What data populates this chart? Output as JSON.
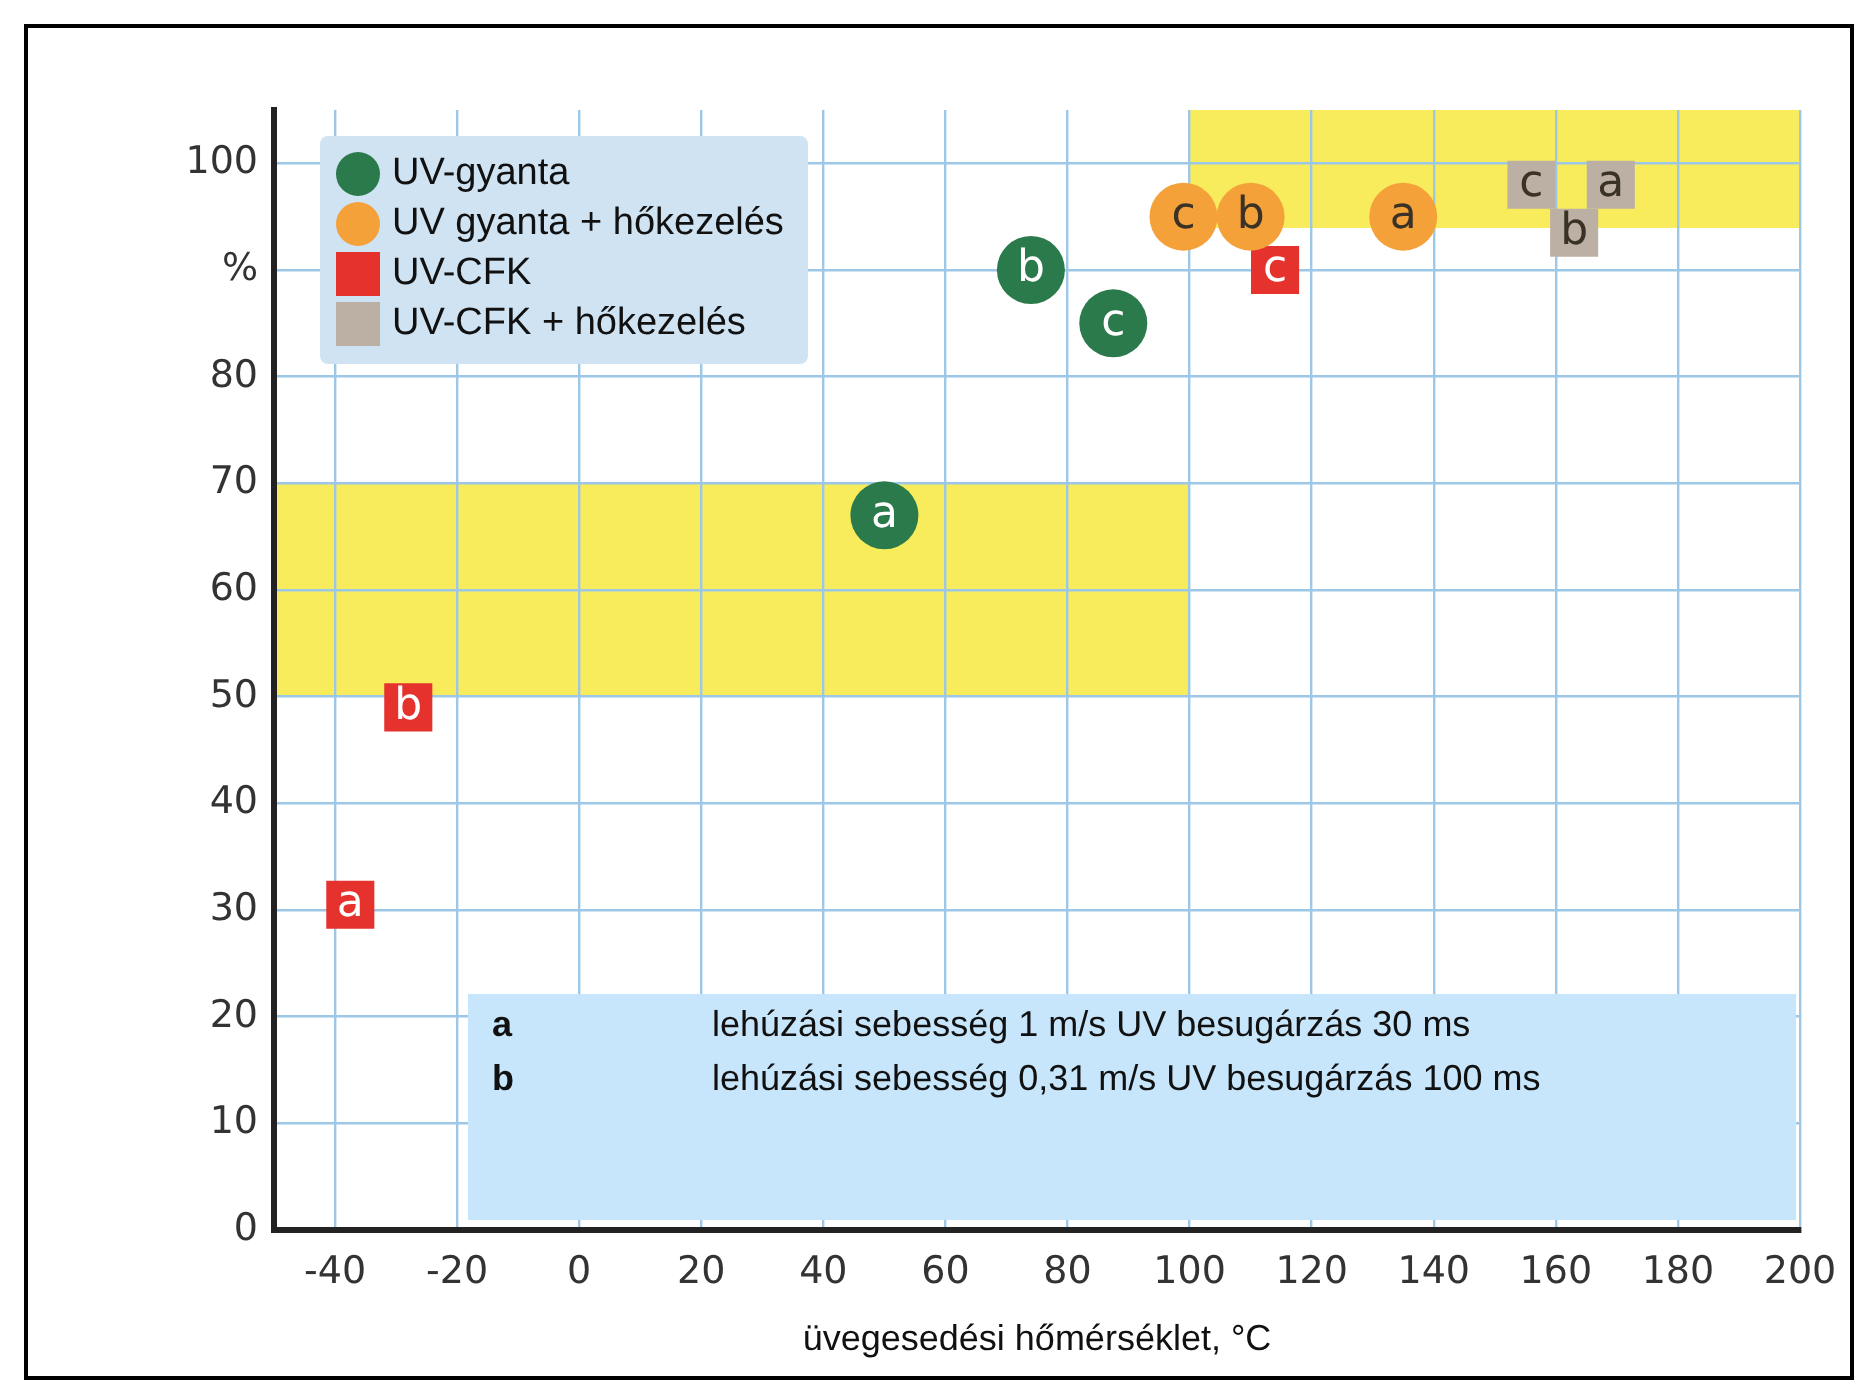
{
  "chart_data": {
    "type": "scatter",
    "xlabel": "üvegesedési hőmérséklet, °C",
    "xlim": [
      -50,
      200
    ],
    "xticks": [
      -40,
      -20,
      0,
      20,
      40,
      60,
      80,
      100,
      120,
      140,
      160,
      180,
      200
    ],
    "ylim": [
      0,
      105
    ],
    "yticks": [
      0,
      10,
      20,
      30,
      40,
      50,
      60,
      70,
      80,
      {
        "value": 90,
        "label": "%"
      },
      100
    ],
    "grid": true,
    "legend": "top left",
    "series": [
      {
        "name": "UV-gyanta",
        "color": "#2a7a4c",
        "marker": "circle",
        "x": [
          50,
          74,
          87.5
        ],
        "values": [
          67,
          90,
          85
        ],
        "value_labels": [
          "a",
          "b",
          "c"
        ]
      },
      {
        "name": "UV gyanta + hőkezelés",
        "color": "#f4a13a",
        "marker": "circle",
        "x": [
          135,
          110,
          99
        ],
        "values": [
          95,
          95,
          95
        ],
        "value_labels": [
          "a",
          "b",
          "c"
        ]
      },
      {
        "name": "UV-CFK",
        "color": "#e5322d",
        "marker": "square",
        "x": [
          -37.5,
          -28,
          114
        ],
        "values": [
          30.5,
          49,
          90
        ],
        "value_labels": [
          "a",
          "b",
          "c"
        ]
      },
      {
        "name": "UV-CFK + hőkezelés",
        "color": "#bbb0a3",
        "marker": "square",
        "x": [
          169,
          163,
          156
        ],
        "values": [
          98,
          93.5,
          98
        ],
        "value_labels": [
          "a",
          "b",
          "c"
        ]
      }
    ],
    "annotations": [
      "a lehúzási sebesség 1 m/s UV besugárzás 30 ms",
      "b lehúzási sebesség 0,31 m/s UV besugárzás 100 ms"
    ]
  }
}
